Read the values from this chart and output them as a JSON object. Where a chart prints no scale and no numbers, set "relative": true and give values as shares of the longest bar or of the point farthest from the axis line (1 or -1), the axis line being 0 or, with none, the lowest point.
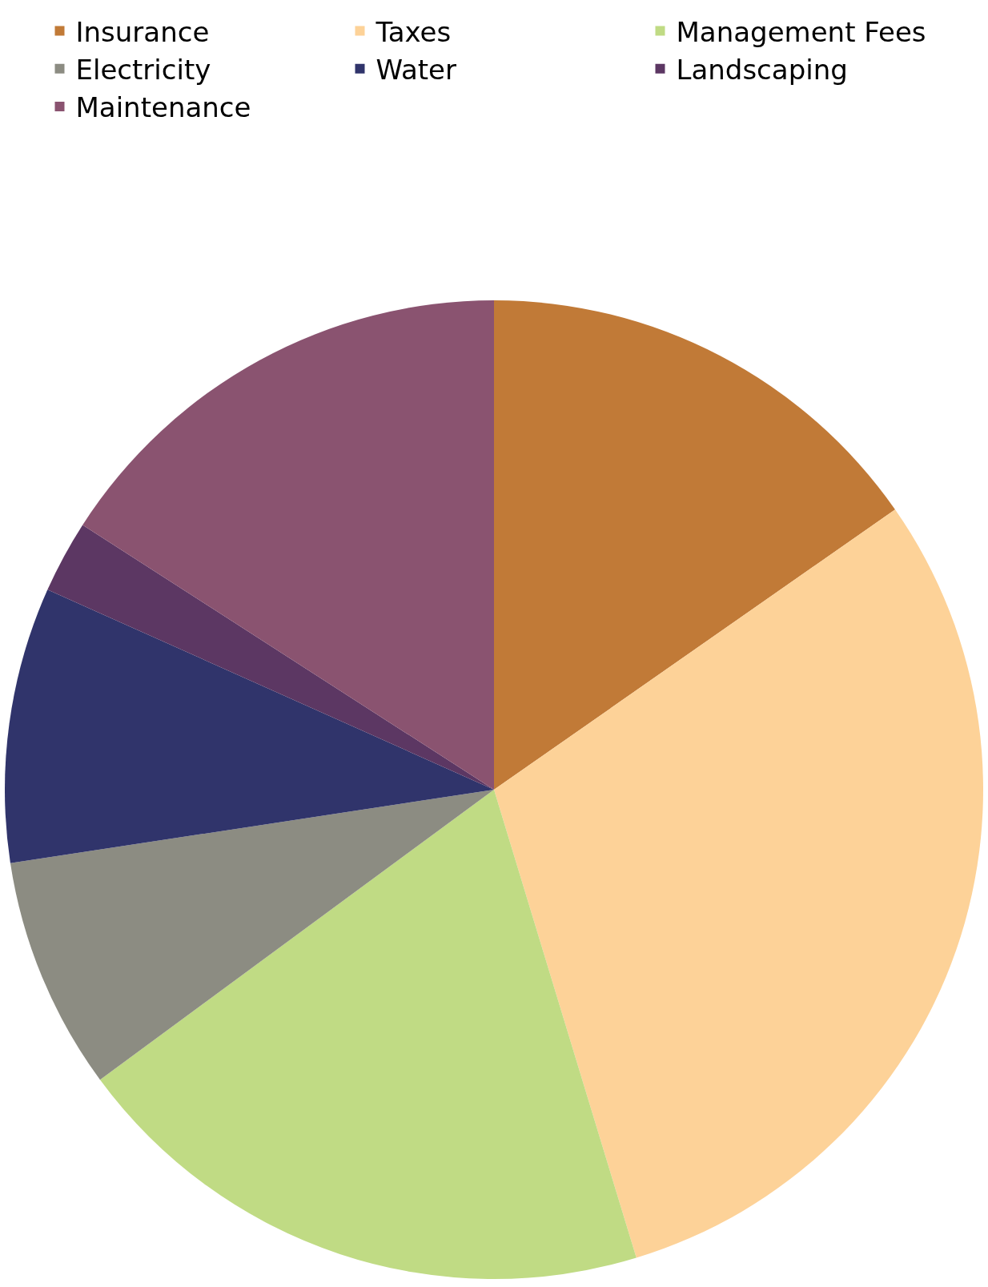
{
  "chart_data": {
    "type": "pie",
    "relative": true,
    "legend": "top",
    "categories": [
      "Insurance",
      "Taxes",
      "Management Fees",
      "Electricity",
      "Water",
      "Landscaping",
      "Maintenance"
    ],
    "values": [
      15.3,
      30.0,
      19.6,
      7.7,
      9.1,
      2.4,
      15.9
    ],
    "colors": [
      "#c17a37",
      "#fdd298",
      "#c0db84",
      "#8c8c82",
      "#30346b",
      "#5c3763",
      "#8a5370"
    ]
  }
}
